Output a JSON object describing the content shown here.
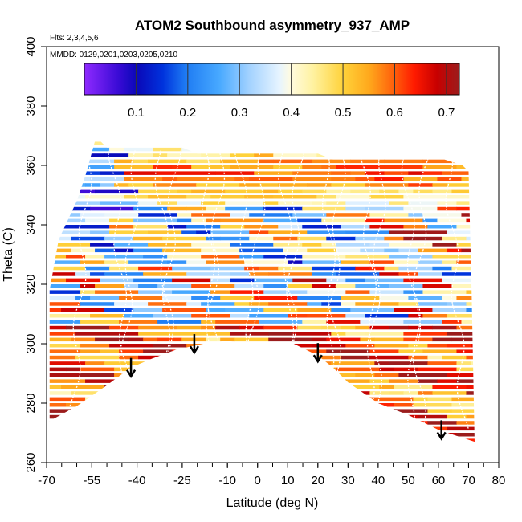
{
  "chart_data": {
    "type": "heatmap",
    "title": "ATOM2 Southbound asymmetry_937_AMP",
    "subtitle_flights": "Flts: 2,3,4,5,6",
    "subtitle_dates": "MMDD: 0129,0201,0203,0205,0210",
    "xlabel": "Latitude (deg N)",
    "ylabel": "Theta (C)",
    "xlim": [
      -70,
      80
    ],
    "ylim": [
      260,
      400
    ],
    "x_ticks": [
      -70,
      -55,
      -40,
      -25,
      -10,
      0,
      10,
      20,
      30,
      40,
      50,
      60,
      70,
      80
    ],
    "x_tick_labels": [
      "-70",
      "-55",
      "-40",
      "-25",
      "-10",
      "0",
      "10",
      "20",
      "30",
      "40",
      "50",
      "60",
      "70",
      "80"
    ],
    "y_ticks": [
      260,
      280,
      300,
      320,
      340,
      360,
      380,
      400
    ],
    "y_tick_labels": [
      "260",
      "280",
      "300",
      "320",
      "340",
      "360",
      "380",
      "400"
    ],
    "colorbar": {
      "range": [
        0.0,
        0.725
      ],
      "ticks": [
        0.1,
        0.2,
        0.3,
        0.4,
        0.5,
        0.6,
        0.7
      ],
      "tick_labels": [
        "0.1",
        "0.2",
        "0.3",
        "0.4",
        "0.5",
        "0.6",
        "0.7"
      ]
    },
    "top_boundary": [
      [
        -69,
        318
      ],
      [
        -66,
        335
      ],
      [
        -60,
        348
      ],
      [
        -57,
        357
      ],
      [
        -54,
        368
      ],
      [
        -52,
        368
      ],
      [
        -50,
        366
      ],
      [
        -45,
        366
      ],
      [
        -40,
        366
      ],
      [
        -30,
        366
      ],
      [
        -25,
        366
      ],
      [
        -20,
        364
      ],
      [
        -10,
        364
      ],
      [
        0,
        364
      ],
      [
        10,
        364
      ],
      [
        20,
        364
      ],
      [
        25,
        362
      ],
      [
        30,
        362
      ],
      [
        40,
        362
      ],
      [
        55,
        362
      ],
      [
        62,
        362
      ],
      [
        68,
        360
      ],
      [
        70,
        358
      ],
      [
        71,
        318
      ]
    ],
    "bottom_boundary": [
      [
        -69,
        274
      ],
      [
        -60,
        279
      ],
      [
        -50,
        286
      ],
      [
        -42,
        292
      ],
      [
        -35,
        295
      ],
      [
        -27,
        298
      ],
      [
        -18,
        300
      ],
      [
        -10,
        301
      ],
      [
        -5,
        300
      ],
      [
        5,
        300
      ],
      [
        12,
        300
      ],
      [
        20,
        296
      ],
      [
        25,
        292
      ],
      [
        30,
        287
      ],
      [
        40,
        280
      ],
      [
        50,
        276
      ],
      [
        60,
        271
      ],
      [
        72,
        267
      ]
    ],
    "arrows": [
      [
        -42,
        289
      ],
      [
        -21,
        297
      ],
      [
        20,
        294
      ],
      [
        61,
        268
      ]
    ]
  }
}
